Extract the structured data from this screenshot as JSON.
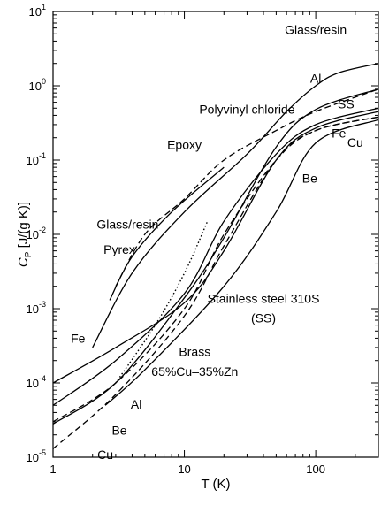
{
  "chart_data": {
    "type": "line",
    "xlabel": "T (K)",
    "ylabel": "C_P [J/(g K)]",
    "ylabel_parts": {
      "main": "C",
      "sub": "P",
      "rest": " [J/(g K)]"
    },
    "x_scale": "log",
    "y_scale": "log",
    "xlim": [
      1,
      300
    ],
    "ylim": [
      1e-05,
      10
    ],
    "x_ticks": [
      {
        "value": 1,
        "label": "1"
      },
      {
        "value": 10,
        "label": "10"
      },
      {
        "value": 100,
        "label": "100"
      }
    ],
    "y_ticks": [
      {
        "value": 1e-05,
        "base": "10",
        "exp": "-5"
      },
      {
        "value": 0.0001,
        "base": "10",
        "exp": "-4"
      },
      {
        "value": 0.001,
        "base": "10",
        "exp": "-3"
      },
      {
        "value": 0.01,
        "base": "10",
        "exp": "-2"
      },
      {
        "value": 0.1,
        "base": "10",
        "exp": "-1"
      },
      {
        "value": 1,
        "base": "10",
        "exp": "0"
      },
      {
        "value": 10,
        "base": "10",
        "exp": "1"
      }
    ],
    "grid": false,
    "legend": "none",
    "series": [
      {
        "name": "Glass/resin",
        "style": "solid",
        "points": [
          [
            2,
            0.0003
          ],
          [
            4,
            0.003
          ],
          [
            10,
            0.02
          ],
          [
            30,
            0.12
          ],
          [
            60,
            0.45
          ],
          [
            100,
            1.0
          ],
          [
            150,
            1.5
          ],
          [
            300,
            2.0
          ]
        ]
      },
      {
        "name": "Polyvinyl chloride",
        "style": "dashed",
        "points": [
          [
            3,
            0.002
          ],
          [
            5,
            0.01
          ],
          [
            10,
            0.03
          ],
          [
            20,
            0.1
          ],
          [
            50,
            0.25
          ],
          [
            100,
            0.45
          ],
          [
            300,
            0.9
          ]
        ]
      },
      {
        "name": "Epoxy",
        "style": "solid",
        "points": [
          [
            2.7,
            0.0013
          ],
          [
            4,
            0.005
          ],
          [
            8,
            0.02
          ],
          [
            20,
            0.08
          ]
        ]
      },
      {
        "name": "Pyrex",
        "style": "dotted",
        "points": [
          [
            3,
            0.0001
          ],
          [
            6,
            0.0006
          ],
          [
            10,
            0.003
          ],
          [
            15,
            0.015
          ]
        ]
      },
      {
        "name": "Stainless steel 310S",
        "style": "solid",
        "points": [
          [
            1,
            5e-05
          ],
          [
            3,
            0.0002
          ],
          [
            10,
            0.0016
          ],
          [
            20,
            0.015
          ],
          [
            50,
            0.12
          ],
          [
            100,
            0.3
          ],
          [
            300,
            0.5
          ]
        ]
      },
      {
        "name": "Brass 65%Cu-35%Zn",
        "style": "dashed",
        "points": [
          [
            1,
            3e-05
          ],
          [
            3,
            0.0001
          ],
          [
            10,
            0.001
          ],
          [
            20,
            0.01
          ],
          [
            50,
            0.1
          ],
          [
            100,
            0.25
          ],
          [
            300,
            0.38
          ]
        ]
      },
      {
        "name": "Fe",
        "style": "solid",
        "points": [
          [
            1,
            0.0001
          ],
          [
            3,
            0.0003
          ],
          [
            10,
            0.0012
          ],
          [
            20,
            0.006
          ],
          [
            50,
            0.1
          ],
          [
            100,
            0.27
          ],
          [
            300,
            0.45
          ]
        ]
      },
      {
        "name": "Al",
        "style": "solid",
        "points": [
          [
            1,
            2.8e-05
          ],
          [
            3,
            0.0001
          ],
          [
            10,
            0.0014
          ],
          [
            20,
            0.009
          ],
          [
            50,
            0.15
          ],
          [
            100,
            0.48
          ],
          [
            300,
            0.9
          ]
        ]
      },
      {
        "name": "Be",
        "style": "solid",
        "points": [
          [
            2.5,
            5e-05
          ],
          [
            5,
            0.00015
          ],
          [
            20,
            0.002
          ],
          [
            50,
            0.02
          ],
          [
            100,
            0.17
          ],
          [
            300,
            0.35
          ]
        ]
      },
      {
        "name": "Cu",
        "style": "dashed",
        "points": [
          [
            1,
            1.3e-05
          ],
          [
            3,
            7e-05
          ],
          [
            10,
            0.0008
          ],
          [
            20,
            0.007
          ],
          [
            50,
            0.1
          ],
          [
            100,
            0.25
          ],
          [
            300,
            0.38
          ]
        ]
      }
    ],
    "annotations": [
      {
        "text": "Glass/resin",
        "x": 100,
        "y": 5
      },
      {
        "text": "Al",
        "x": 100,
        "y": 1.1
      },
      {
        "text": "SS",
        "x": 170,
        "y": 0.5
      },
      {
        "text": "Polyvinyl chloride",
        "x": 30,
        "y": 0.42
      },
      {
        "text": "Epoxy",
        "x": 10,
        "y": 0.14
      },
      {
        "text": "Fe",
        "x": 150,
        "y": 0.2
      },
      {
        "text": "Cu",
        "x": 200,
        "y": 0.15
      },
      {
        "text": "Be",
        "x": 90,
        "y": 0.05
      },
      {
        "text": "Glass/resin",
        "x": 3.7,
        "y": 0.012
      },
      {
        "text": "Pyrex",
        "x": 3.2,
        "y": 0.0055
      },
      {
        "text": "Stainless steel 310S",
        "x": 40,
        "y": 0.0012
      },
      {
        "text": "(SS)",
        "x": 40,
        "y": 0.00065
      },
      {
        "text": "Brass",
        "x": 12,
        "y": 0.00023
      },
      {
        "text": "65%Cu–35%Zn",
        "x": 12,
        "y": 0.000125
      },
      {
        "text": "Fe",
        "x": 1.55,
        "y": 0.00035
      },
      {
        "text": "Al",
        "x": 4.3,
        "y": 4.5e-05
      },
      {
        "text": "Be",
        "x": 3.2,
        "y": 2e-05
      },
      {
        "text": "Cu",
        "x": 2.5,
        "y": 9.5e-06
      }
    ]
  }
}
